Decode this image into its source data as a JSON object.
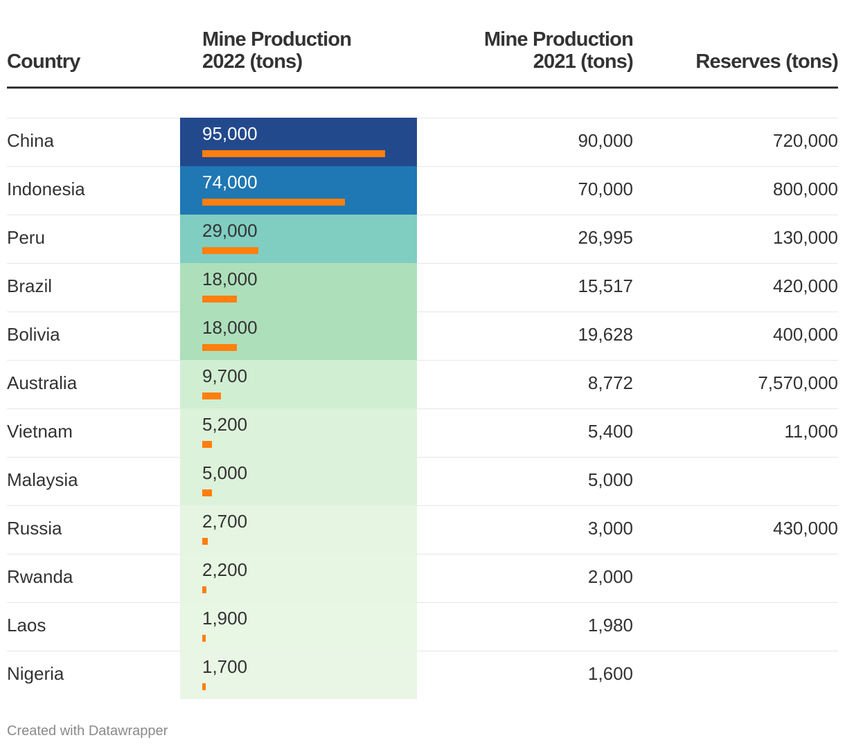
{
  "chart_data": {
    "type": "table",
    "columns": [
      "Country",
      "Mine Production 2022 (tons)",
      "Mine Production 2021 (tons)",
      "Reserves (tons)"
    ],
    "header_lines": {
      "country": [
        "Country"
      ],
      "prod22": [
        "Mine Production",
        "2022 (tons)"
      ],
      "prod21": [
        "Mine Production",
        "2021 (tons)"
      ],
      "reserves": [
        "Reserves (tons)"
      ]
    },
    "bar_max": 100000,
    "rows": [
      {
        "country": "China",
        "prod22": 95000,
        "prod22_label": "95,000",
        "prod21": "90,000",
        "reserves": "720,000",
        "color": "#23498d",
        "text_color": "#ffffff"
      },
      {
        "country": "Indonesia",
        "prod22": 74000,
        "prod22_label": "74,000",
        "prod21": "70,000",
        "reserves": "800,000",
        "color": "#1f77b4",
        "text_color": "#ffffff"
      },
      {
        "country": "Peru",
        "prod22": 29000,
        "prod22_label": "29,000",
        "prod21": "26,995",
        "reserves": "130,000",
        "color": "#80cdc1",
        "text_color": "#333333"
      },
      {
        "country": "Brazil",
        "prod22": 18000,
        "prod22_label": "18,000",
        "prod21": "15,517",
        "reserves": "420,000",
        "color": "#addfbb",
        "text_color": "#333333"
      },
      {
        "country": "Bolivia",
        "prod22": 18000,
        "prod22_label": "18,000",
        "prod21": "19,628",
        "reserves": "400,000",
        "color": "#addfbb",
        "text_color": "#333333"
      },
      {
        "country": "Australia",
        "prod22": 9700,
        "prod22_label": "9,700",
        "prod21": "8,772",
        "reserves": "7,570,000",
        "color": "#d0eed1",
        "text_color": "#333333"
      },
      {
        "country": "Vietnam",
        "prod22": 5200,
        "prod22_label": "5,200",
        "prod21": "5,400",
        "reserves": "11,000",
        "color": "#ddf2da",
        "text_color": "#333333"
      },
      {
        "country": "Malaysia",
        "prod22": 5000,
        "prod22_label": "5,000",
        "prod21": "5,000",
        "reserves": "",
        "color": "#ddf2da",
        "text_color": "#333333"
      },
      {
        "country": "Russia",
        "prod22": 2700,
        "prod22_label": "2,700",
        "prod21": "3,000",
        "reserves": "430,000",
        "color": "#e5f5e1",
        "text_color": "#333333"
      },
      {
        "country": "Rwanda",
        "prod22": 2200,
        "prod22_label": "2,200",
        "prod21": "2,000",
        "reserves": "",
        "color": "#e7f5e3",
        "text_color": "#333333"
      },
      {
        "country": "Laos",
        "prod22": 1900,
        "prod22_label": "1,900",
        "prod21": "1,980",
        "reserves": "",
        "color": "#e8f6e4",
        "text_color": "#333333"
      },
      {
        "country": "Nigeria",
        "prod22": 1700,
        "prod22_label": "1,700",
        "prod21": "1,600",
        "reserves": "",
        "color": "#e9f6e5",
        "text_color": "#333333"
      }
    ]
  },
  "colors": {
    "bar": "#ff7f0e",
    "header_rule": "#333333"
  },
  "footer": {
    "credit": "Created with Datawrapper"
  }
}
